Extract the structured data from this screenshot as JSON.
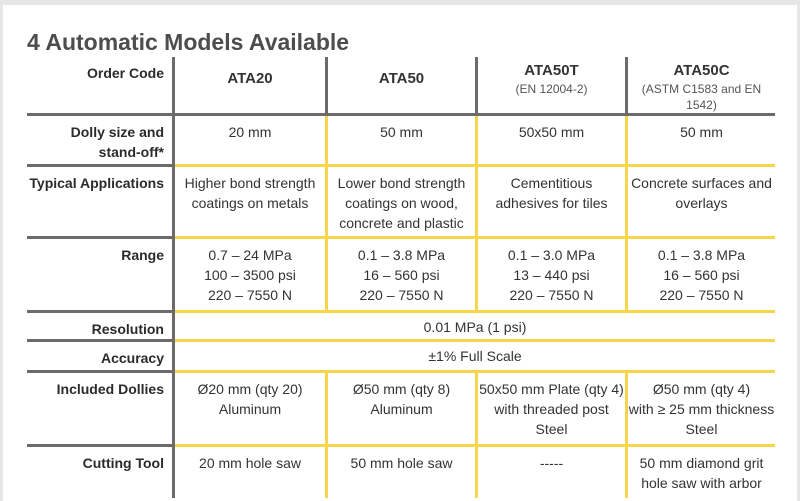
{
  "title": "4 Automatic Models Available",
  "colors": {
    "accent_yellow": "#f8d54a",
    "rule_gray": "#6b6b6b"
  },
  "header": {
    "label": "Order Code",
    "models": [
      {
        "code": "ATA20",
        "sub": ""
      },
      {
        "code": "ATA50",
        "sub": ""
      },
      {
        "code": "ATA50T",
        "sub": "(EN 12004-2)"
      },
      {
        "code": "ATA50C",
        "sub": "(ASTM C1583 and EN 1542)"
      }
    ]
  },
  "rows": [
    {
      "label": [
        "Dolly size and",
        "stand-off*"
      ],
      "cells": [
        [
          "20 mm"
        ],
        [
          "50 mm"
        ],
        [
          "50x50 mm"
        ],
        [
          "50 mm"
        ]
      ]
    },
    {
      "label": [
        "Typical Applications"
      ],
      "cells": [
        [
          "Higher bond strength",
          "coatings on metals"
        ],
        [
          "Lower bond strength",
          "coatings on wood,",
          "concrete and plastic"
        ],
        [
          "Cementitious",
          "adhesives for tiles"
        ],
        [
          "Concrete surfaces and",
          "overlays"
        ]
      ]
    },
    {
      "label": [
        "Range"
      ],
      "cells": [
        [
          "0.7 – 24 MPa",
          "100 – 3500 psi",
          "220 – 7550 N"
        ],
        [
          "0.1 – 3.8 MPa",
          "16 – 560 psi",
          "220 – 7550 N"
        ],
        [
          "0.1 – 3.0 MPa",
          "13 – 440 psi",
          "220 – 7550 N"
        ],
        [
          "0.1 – 3.8 MPa",
          "16 – 560 psi",
          "220 – 7550 N"
        ]
      ]
    },
    {
      "label": [
        "Resolution"
      ],
      "span": "0.01 MPa (1 psi)"
    },
    {
      "label": [
        "Accuracy"
      ],
      "span": "±1% Full Scale"
    },
    {
      "label": [
        "Included Dollies"
      ],
      "cells": [
        [
          "Ø20 mm (qty 20)",
          "Aluminum"
        ],
        [
          "Ø50 mm (qty 8)",
          "Aluminum"
        ],
        [
          "50x50 mm Plate (qty 4)",
          "with threaded post",
          "Steel"
        ],
        [
          "Ø50 mm (qty 4)",
          "with ≥ 25 mm thickness",
          "Steel"
        ]
      ]
    },
    {
      "label": [
        "Cutting Tool"
      ],
      "cells": [
        [
          "20 mm hole saw"
        ],
        [
          "50 mm hole saw"
        ],
        [
          "-----"
        ],
        [
          "50 mm diamond grit",
          "hole saw with arbor"
        ]
      ]
    }
  ]
}
